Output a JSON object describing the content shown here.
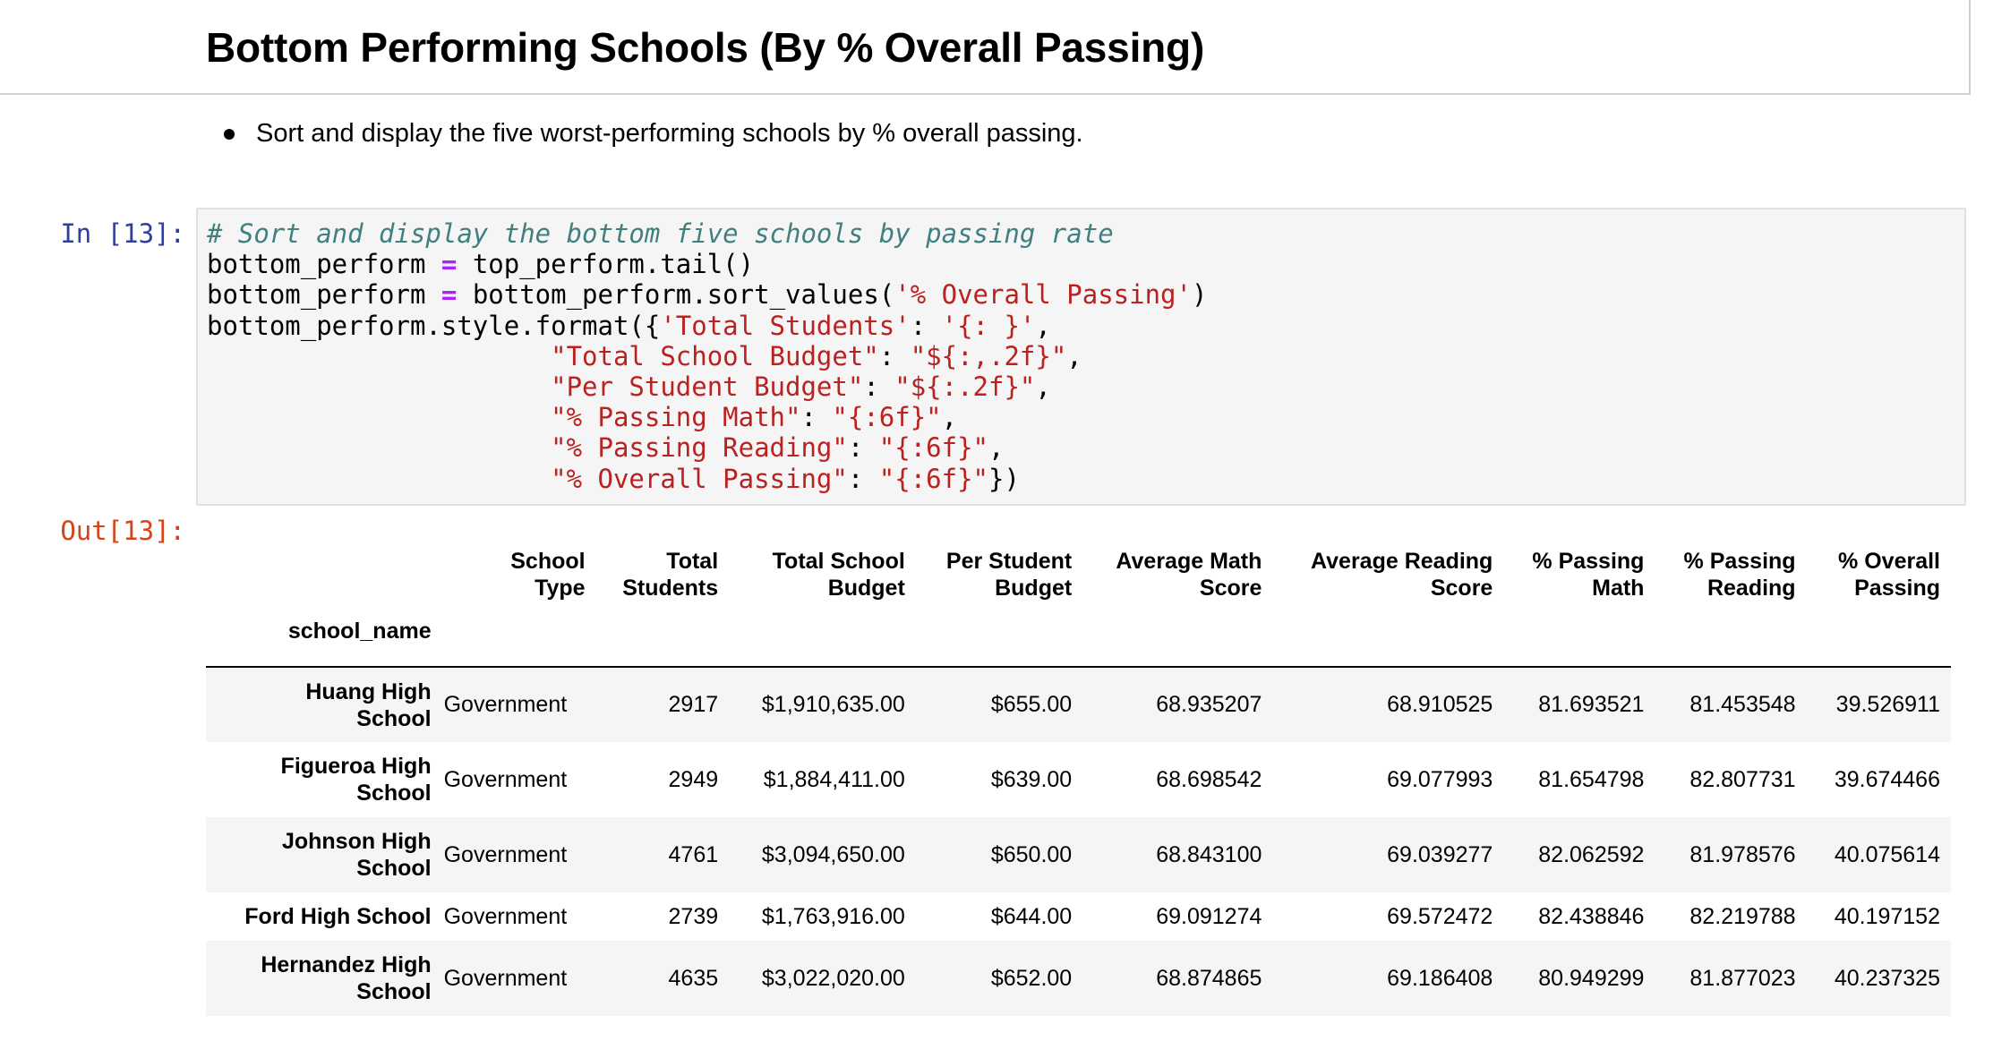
{
  "heading": "Bottom Performing Schools (By % Overall Passing)",
  "instruction": "Sort and display the five worst-performing schools by % overall passing.",
  "cell": {
    "in_prompt": "In [13]:",
    "out_prompt": "Out[13]:",
    "code": {
      "comment": "# Sort and display the bottom five schools by passing rate",
      "line2_a": "bottom_perform ",
      "line2_op": "=",
      "line2_b": " top_perform.tail()",
      "line3_a": "bottom_perform ",
      "line3_op": "=",
      "line3_b": " bottom_perform.sort_values(",
      "line3_str": "'% Overall Passing'",
      "line3_c": ")",
      "line4_a": "bottom_perform.style.format({",
      "line4_str1": "'Total Students'",
      "line4_b": ": ",
      "line4_str2": "'{: }'",
      "line4_c": ",",
      "line5_pad": "                      ",
      "line5_str1": "\"Total School Budget\"",
      "line5_b": ": ",
      "line5_str2": "\"${:,.2f}\"",
      "line5_c": ",",
      "line6_pad": "                      ",
      "line6_str1": "\"Per Student Budget\"",
      "line6_b": ": ",
      "line6_str2": "\"${:.2f}\"",
      "line6_c": ",",
      "line7_pad": "                      ",
      "line7_str1": "\"% Passing Math\"",
      "line7_b": ": ",
      "line7_str2": "\"{:6f}\"",
      "line7_c": ",",
      "line8_pad": "                      ",
      "line8_str1": "\"% Passing Reading\"",
      "line8_b": ": ",
      "line8_str2": "\"{:6f}\"",
      "line8_c": ",",
      "line9_pad": "                      ",
      "line9_str1": "\"% Overall Passing\"",
      "line9_b": ": ",
      "line9_str2": "\"{:6f}\"",
      "line9_c": "})"
    }
  },
  "table": {
    "index_name": "school_name",
    "columns": [
      {
        "l1": "School",
        "l2": "Type"
      },
      {
        "l1": "Total",
        "l2": "Students"
      },
      {
        "l1": "Total School",
        "l2": "Budget"
      },
      {
        "l1": "Per Student",
        "l2": "Budget"
      },
      {
        "l1": "Average Math",
        "l2": "Score"
      },
      {
        "l1": "Average Reading",
        "l2": "Score"
      },
      {
        "l1": "% Passing",
        "l2": "Math"
      },
      {
        "l1": "% Passing",
        "l2": "Reading"
      },
      {
        "l1": "% Overall",
        "l2": "Passing"
      }
    ],
    "rows": [
      {
        "name_l1": "Huang High",
        "name_l2": "School",
        "type": "Government",
        "students": "2917",
        "budget": "$1,910,635.00",
        "per_student": "$655.00",
        "math": "68.935207",
        "reading": "68.910525",
        "pass_math": "81.693521",
        "pass_reading": "81.453548",
        "overall": "39.526911"
      },
      {
        "name_l1": "Figueroa High",
        "name_l2": "School",
        "type": "Government",
        "students": "2949",
        "budget": "$1,884,411.00",
        "per_student": "$639.00",
        "math": "68.698542",
        "reading": "69.077993",
        "pass_math": "81.654798",
        "pass_reading": "82.807731",
        "overall": "39.674466"
      },
      {
        "name_l1": "Johnson High",
        "name_l2": "School",
        "type": "Government",
        "students": "4761",
        "budget": "$3,094,650.00",
        "per_student": "$650.00",
        "math": "68.843100",
        "reading": "69.039277",
        "pass_math": "82.062592",
        "pass_reading": "81.978576",
        "overall": "40.075614"
      },
      {
        "name_l1": "Ford High School",
        "name_l2": "",
        "type": "Government",
        "students": "2739",
        "budget": "$1,763,916.00",
        "per_student": "$644.00",
        "math": "69.091274",
        "reading": "69.572472",
        "pass_math": "82.438846",
        "pass_reading": "82.219788",
        "overall": "40.197152"
      },
      {
        "name_l1": "Hernandez High",
        "name_l2": "School",
        "type": "Government",
        "students": "4635",
        "budget": "$3,022,020.00",
        "per_student": "$652.00",
        "math": "68.874865",
        "reading": "69.186408",
        "pass_math": "80.949299",
        "pass_reading": "81.877023",
        "overall": "40.237325"
      }
    ]
  }
}
